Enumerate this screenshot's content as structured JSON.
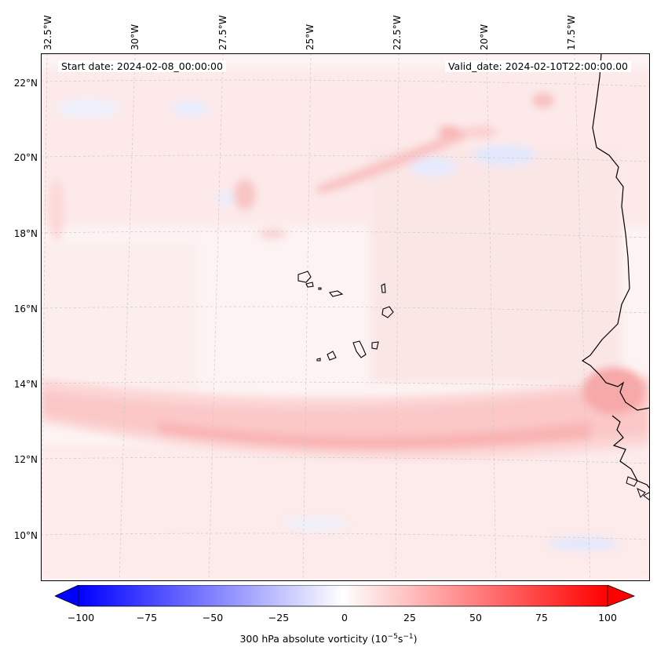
{
  "map": {
    "start_date": "Start date: 2024-02-08_00:00:00",
    "valid_date": "Valid_date: 2024-02-10T22:00:00.00",
    "longitude_labels": [
      "32.5°W",
      "30°W",
      "27.5°W",
      "25°W",
      "22.5°W",
      "20°W",
      "17.5°W"
    ],
    "latitude_labels": [
      "22°N",
      "20°N",
      "18°N",
      "16°N",
      "14°N",
      "12°N",
      "10°N"
    ]
  },
  "colorbar": {
    "ticks": [
      "−100",
      "−75",
      "−50",
      "−25",
      "0",
      "25",
      "50",
      "75",
      "100"
    ],
    "label_main": "300 hPa absolute vorticity (10",
    "label_exp1": "−5",
    "label_mid": "s",
    "label_exp2": "−1",
    "label_end": ")",
    "colors": {
      "min": "#0000ff",
      "mid": "#ffffff",
      "max": "#ff0000"
    }
  }
}
